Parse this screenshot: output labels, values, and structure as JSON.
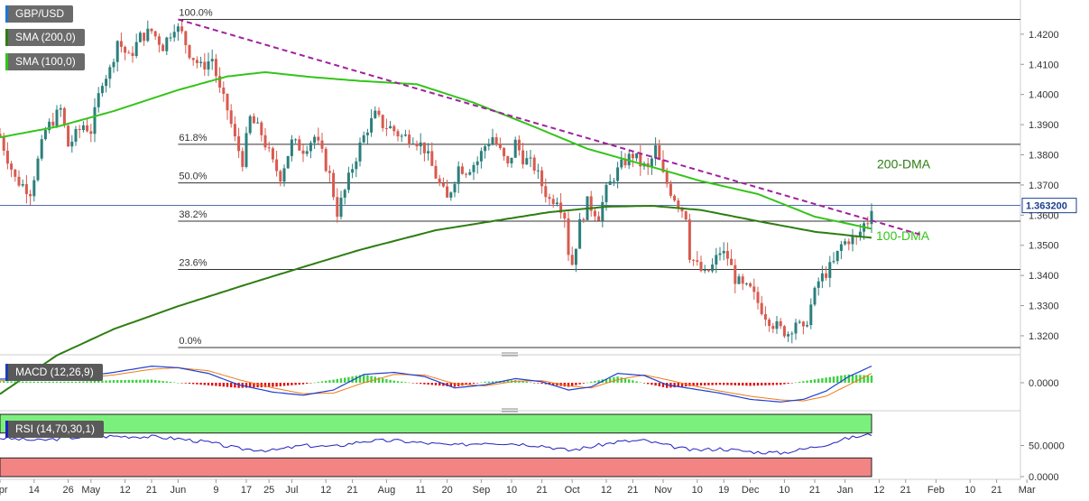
{
  "chart_data": {
    "type": "candlestick",
    "symbol": "GBP/USD",
    "price_scale": {
      "min": 1.314,
      "max": 1.426,
      "ticks": [
        1.42,
        1.41,
        1.4,
        1.39,
        1.38,
        1.37,
        1.36,
        1.35,
        1.34,
        1.33,
        1.32
      ],
      "tick_labels": [
        "1.4200",
        "1.4100",
        "1.4000",
        "1.3900",
        "1.3800",
        "1.3700",
        "1.3600",
        "1.3500",
        "1.3400",
        "1.3300",
        "1.3200"
      ]
    },
    "last_price": {
      "value": 1.3632,
      "label": "1.363200",
      "color": "#1a3f8f"
    },
    "x_axis": {
      "labels": [
        "Apr",
        "14",
        "26",
        "May",
        "12",
        "21",
        "Jun",
        "9",
        "17",
        "25",
        "Jul",
        "12",
        "21",
        "Aug",
        "11",
        "20",
        "Sep",
        "10",
        "21",
        "Oct",
        "12",
        "21",
        "Nov",
        "10",
        "19",
        "Dec",
        "10",
        "21",
        "Jan",
        "12",
        "21",
        "Feb",
        "10",
        "21",
        "Mar"
      ],
      "label_index": [
        0,
        9,
        18,
        24,
        33,
        40,
        47,
        57,
        65,
        71,
        77,
        86,
        93,
        102,
        111,
        118,
        127,
        135,
        143,
        151,
        160,
        167,
        175,
        184,
        191,
        198,
        207,
        215,
        223,
        232,
        239,
        247,
        256,
        263,
        271
      ],
      "last_candle_index": 230
    },
    "fibonacci": {
      "levels": [
        {
          "label": "100.0%",
          "value": 1.4249
        },
        {
          "label": "61.8%",
          "value": 1.3835
        },
        {
          "label": "50.0%",
          "value": 1.3707
        },
        {
          "label": "38.2%",
          "value": 1.358
        },
        {
          "label": "23.6%",
          "value": 1.342
        },
        {
          "label": "0.0%",
          "value": 1.3161
        }
      ]
    },
    "trendline": {
      "start_index": 47,
      "start_value": 1.4249,
      "end_index": 243,
      "end_value": 1.3535,
      "color": "#a020a0"
    },
    "moving_averages": [
      {
        "name": "200-DMA",
        "legend": "SMA (200,0)",
        "color": "#2e7d12",
        "points": [
          [
            0,
            1.3007
          ],
          [
            15,
            1.3135
          ],
          [
            30,
            1.3222
          ],
          [
            47,
            1.3298
          ],
          [
            65,
            1.337
          ],
          [
            80,
            1.3428
          ],
          [
            95,
            1.3485
          ],
          [
            115,
            1.355
          ],
          [
            130,
            1.358
          ],
          [
            145,
            1.361
          ],
          [
            160,
            1.3628
          ],
          [
            172,
            1.3631
          ],
          [
            185,
            1.3617
          ],
          [
            200,
            1.358
          ],
          [
            215,
            1.3545
          ],
          [
            230,
            1.3525
          ]
        ]
      },
      {
        "name": "100-DMA",
        "legend": "SMA (100,0)",
        "color": "#34c41a",
        "points": [
          [
            0,
            1.3858
          ],
          [
            15,
            1.3893
          ],
          [
            30,
            1.3945
          ],
          [
            47,
            1.4015
          ],
          [
            60,
            1.406
          ],
          [
            70,
            1.4074
          ],
          [
            82,
            1.4058
          ],
          [
            95,
            1.4045
          ],
          [
            110,
            1.4034
          ],
          [
            125,
            1.3973
          ],
          [
            140,
            1.3898
          ],
          [
            155,
            1.382
          ],
          [
            172,
            1.376
          ],
          [
            185,
            1.3713
          ],
          [
            200,
            1.367
          ],
          [
            215,
            1.3595
          ],
          [
            230,
            1.3555
          ]
        ]
      }
    ],
    "ma_labels": {
      "dma200": "200-DMA",
      "dma100": "100-DMA"
    },
    "close_anchors": [
      [
        0,
        1.386
      ],
      [
        4,
        1.372
      ],
      [
        8,
        1.368
      ],
      [
        12,
        1.388
      ],
      [
        16,
        1.395
      ],
      [
        18,
        1.383
      ],
      [
        22,
        1.39
      ],
      [
        24,
        1.388
      ],
      [
        27,
        1.405
      ],
      [
        29,
        1.408
      ],
      [
        31,
        1.418
      ],
      [
        34,
        1.412
      ],
      [
        37,
        1.419
      ],
      [
        40,
        1.421
      ],
      [
        43,
        1.416
      ],
      [
        46,
        1.423
      ],
      [
        48,
        1.42
      ],
      [
        50,
        1.414
      ],
      [
        53,
        1.409
      ],
      [
        56,
        1.412
      ],
      [
        58,
        1.401
      ],
      [
        60,
        1.395
      ],
      [
        62,
        1.385
      ],
      [
        64,
        1.378
      ],
      [
        66,
        1.392
      ],
      [
        69,
        1.387
      ],
      [
        72,
        1.377
      ],
      [
        74,
        1.373
      ],
      [
        77,
        1.384
      ],
      [
        80,
        1.382
      ],
      [
        83,
        1.386
      ],
      [
        85,
        1.38
      ],
      [
        87,
        1.373
      ],
      [
        89,
        1.361
      ],
      [
        91,
        1.368
      ],
      [
        93,
        1.376
      ],
      [
        95,
        1.383
      ],
      [
        97,
        1.389
      ],
      [
        99,
        1.393
      ],
      [
        101,
        1.39
      ],
      [
        103,
        1.389
      ],
      [
        106,
        1.386
      ],
      [
        109,
        1.386
      ],
      [
        112,
        1.382
      ],
      [
        114,
        1.376
      ],
      [
        116,
        1.37
      ],
      [
        118,
        1.365
      ],
      [
        121,
        1.376
      ],
      [
        123,
        1.375
      ],
      [
        126,
        1.378
      ],
      [
        128,
        1.383
      ],
      [
        130,
        1.386
      ],
      [
        132,
        1.381
      ],
      [
        134,
        1.376
      ],
      [
        136,
        1.384
      ],
      [
        138,
        1.379
      ],
      [
        141,
        1.376
      ],
      [
        143,
        1.37
      ],
      [
        145,
        1.365
      ],
      [
        147,
        1.366
      ],
      [
        149,
        1.36
      ],
      [
        150,
        1.348
      ],
      [
        151,
        1.344
      ],
      [
        153,
        1.357
      ],
      [
        155,
        1.364
      ],
      [
        158,
        1.36
      ],
      [
        160,
        1.368
      ],
      [
        162,
        1.373
      ],
      [
        165,
        1.378
      ],
      [
        167,
        1.38
      ],
      [
        169,
        1.377
      ],
      [
        171,
        1.375
      ],
      [
        173,
        1.382
      ],
      [
        175,
        1.373
      ],
      [
        177,
        1.368
      ],
      [
        179,
        1.364
      ],
      [
        181,
        1.36
      ],
      [
        182,
        1.347
      ],
      [
        184,
        1.343
      ],
      [
        186,
        1.34
      ],
      [
        188,
        1.343
      ],
      [
        190,
        1.348
      ],
      [
        192,
        1.346
      ],
      [
        194,
        1.339
      ],
      [
        196,
        1.336
      ],
      [
        198,
        1.335
      ],
      [
        200,
        1.331
      ],
      [
        202,
        1.327
      ],
      [
        204,
        1.324
      ],
      [
        206,
        1.322
      ],
      [
        208,
        1.321
      ],
      [
        210,
        1.325
      ],
      [
        212,
        1.321
      ],
      [
        214,
        1.33
      ],
      [
        216,
        1.338
      ],
      [
        218,
        1.341
      ],
      [
        220,
        1.344
      ],
      [
        222,
        1.35
      ],
      [
        224,
        1.352
      ],
      [
        226,
        1.352
      ],
      [
        228,
        1.357
      ],
      [
        229,
        1.358
      ],
      [
        230,
        1.3632
      ]
    ]
  },
  "legends": {
    "symbol": {
      "label": "GBP/USD",
      "color": "#1f77d0"
    },
    "sma200": {
      "label": "SMA (200,0)",
      "color": "#2e7d12"
    },
    "sma100": {
      "label": "SMA (100,0)",
      "color": "#34c41a"
    },
    "macd": {
      "label": "MACD (12,26,9)",
      "color": "#1f3fb0"
    },
    "rsi": {
      "label": "RSI (14,70,30,1)",
      "color": "#2020c0"
    }
  },
  "macd": {
    "zero_label": "0.0000",
    "macd_color": "#1f3fd0",
    "signal_color": "#f07c18",
    "hist_pos_color": "#3cd23c",
    "hist_neg_color": "#e01010",
    "macd_anchors": [
      [
        0,
        0.35
      ],
      [
        10,
        0.4
      ],
      [
        20,
        0.5
      ],
      [
        30,
        1.0
      ],
      [
        40,
        1.6
      ],
      [
        47,
        1.45
      ],
      [
        55,
        0.9
      ],
      [
        63,
        -0.2
      ],
      [
        72,
        -0.9
      ],
      [
        80,
        -1.2
      ],
      [
        88,
        -0.7
      ],
      [
        96,
        0.8
      ],
      [
        104,
        1.0
      ],
      [
        112,
        0.6
      ],
      [
        120,
        -0.5
      ],
      [
        128,
        -0.2
      ],
      [
        136,
        0.4
      ],
      [
        143,
        0.1
      ],
      [
        150,
        -0.7
      ],
      [
        156,
        -0.4
      ],
      [
        163,
        0.9
      ],
      [
        170,
        0.7
      ],
      [
        176,
        -0.2
      ],
      [
        183,
        -0.6
      ],
      [
        190,
        -1.0
      ],
      [
        198,
        -1.6
      ],
      [
        206,
        -1.85
      ],
      [
        212,
        -1.6
      ],
      [
        218,
        -0.8
      ],
      [
        224,
        0.6
      ],
      [
        230,
        1.6
      ]
    ],
    "signal_anchors": [
      [
        0,
        0.2
      ],
      [
        10,
        0.3
      ],
      [
        20,
        0.4
      ],
      [
        30,
        0.75
      ],
      [
        40,
        1.3
      ],
      [
        47,
        1.45
      ],
      [
        55,
        1.15
      ],
      [
        63,
        0.3
      ],
      [
        72,
        -0.5
      ],
      [
        80,
        -1.05
      ],
      [
        88,
        -1.0
      ],
      [
        96,
        0.0
      ],
      [
        104,
        0.8
      ],
      [
        112,
        0.75
      ],
      [
        120,
        -0.1
      ],
      [
        128,
        -0.3
      ],
      [
        136,
        0.15
      ],
      [
        143,
        0.2
      ],
      [
        150,
        -0.3
      ],
      [
        156,
        -0.5
      ],
      [
        163,
        0.3
      ],
      [
        170,
        0.75
      ],
      [
        176,
        0.3
      ],
      [
        183,
        -0.3
      ],
      [
        190,
        -0.8
      ],
      [
        198,
        -1.3
      ],
      [
        206,
        -1.65
      ],
      [
        212,
        -1.75
      ],
      [
        218,
        -1.3
      ],
      [
        224,
        -0.2
      ],
      [
        230,
        0.9
      ]
    ]
  },
  "rsi": {
    "ticks": [
      {
        "value": 50,
        "label": "50.0000"
      },
      {
        "value": 0,
        "label": "0.0000"
      }
    ],
    "overbought": 70,
    "oversold": 30,
    "line_color": "#2020c0",
    "upper_band_color": "#7cf07c",
    "lower_band_color": "#f28484",
    "anchors": [
      [
        0,
        62
      ],
      [
        10,
        58
      ],
      [
        20,
        63
      ],
      [
        30,
        65
      ],
      [
        40,
        64
      ],
      [
        47,
        61
      ],
      [
        55,
        55
      ],
      [
        63,
        45
      ],
      [
        72,
        42
      ],
      [
        80,
        50
      ],
      [
        88,
        48
      ],
      [
        96,
        57
      ],
      [
        104,
        58
      ],
      [
        112,
        54
      ],
      [
        120,
        50
      ],
      [
        128,
        55
      ],
      [
        136,
        53
      ],
      [
        143,
        50
      ],
      [
        150,
        42
      ],
      [
        156,
        48
      ],
      [
        163,
        56
      ],
      [
        170,
        58
      ],
      [
        176,
        50
      ],
      [
        183,
        42
      ],
      [
        190,
        45
      ],
      [
        198,
        40
      ],
      [
        206,
        38
      ],
      [
        212,
        44
      ],
      [
        218,
        52
      ],
      [
        224,
        62
      ],
      [
        230,
        68
      ]
    ]
  }
}
